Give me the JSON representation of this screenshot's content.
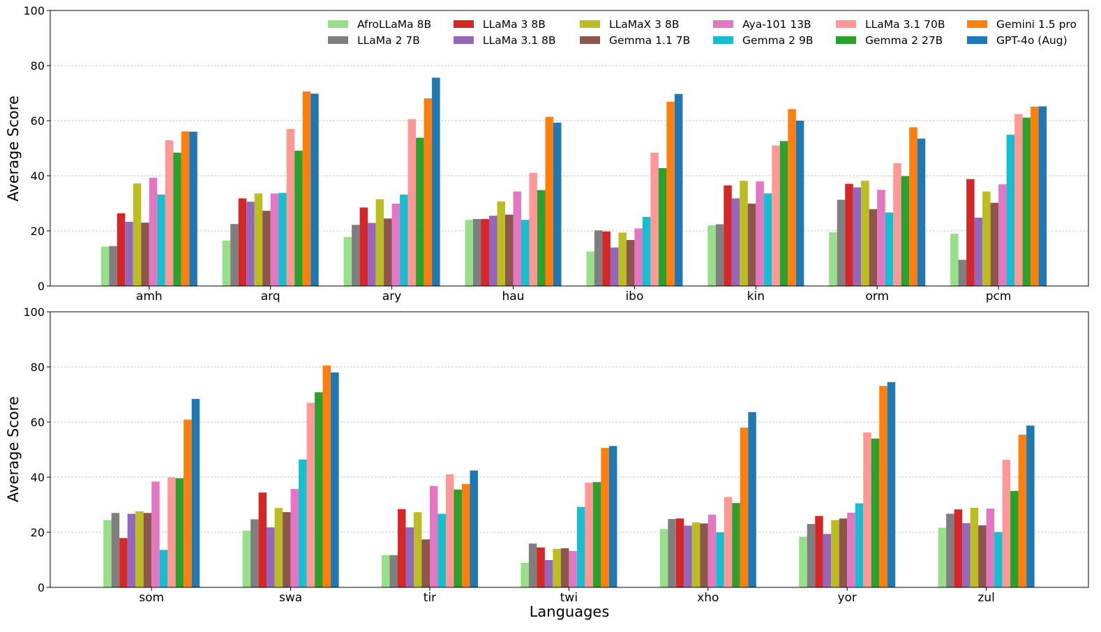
{
  "chart_data": {
    "type": "bar",
    "ylabel": "Average Score",
    "xlabel": "Languages",
    "ylim": [
      0,
      100
    ],
    "yticks": [
      "0",
      "20",
      "40",
      "60",
      "80",
      "100"
    ],
    "grid": "horizontal dashed",
    "legend": {
      "placement": "top-right",
      "entries": [
        {
          "name": "AfroLLaMa 8B",
          "color": "#98df8a"
        },
        {
          "name": "LLaMa 2 7B",
          "color": "#7f7f7f"
        },
        {
          "name": "LLaMa 3 8B",
          "color": "#d62728"
        },
        {
          "name": "LLaMa 3.1 8B",
          "color": "#9467bd"
        },
        {
          "name": "LLaMaX 3 8B",
          "color": "#bcbd22"
        },
        {
          "name": "Gemma 1.1 7B",
          "color": "#8c564b"
        },
        {
          "name": "Aya-101 13B",
          "color": "#e377c2"
        },
        {
          "name": "Gemma 2 9B",
          "color": "#17becf"
        },
        {
          "name": "LLaMa 3.1 70B",
          "color": "#ff9896"
        },
        {
          "name": "Gemma 2 27B",
          "color": "#2ca02c"
        },
        {
          "name": "Gemini 1.5 pro",
          "color": "#ff7f0e"
        },
        {
          "name": "GPT-4o (Aug)",
          "color": "#1f77b4"
        }
      ]
    },
    "panels": [
      {
        "categories": [
          "amh",
          "arq",
          "ary",
          "hau",
          "ibo",
          "kin",
          "orm",
          "pcm"
        ],
        "series": [
          {
            "name": "AfroLLaMa 8B",
            "values": [
              14.3,
              16.5,
              17.8,
              24.0,
              12.5,
              22.0,
              19.5,
              19.0
            ]
          },
          {
            "name": "LLaMa 2 7B",
            "values": [
              14.5,
              22.5,
              22.2,
              24.3,
              20.2,
              22.4,
              31.3,
              9.5
            ]
          },
          {
            "name": "LLaMa 3 8B",
            "values": [
              26.4,
              31.8,
              28.5,
              24.3,
              19.8,
              36.5,
              37.1,
              38.8
            ]
          },
          {
            "name": "LLaMa 3.1 8B",
            "values": [
              23.3,
              30.6,
              22.9,
              25.5,
              14.0,
              31.8,
              35.8,
              24.8
            ]
          },
          {
            "name": "LLaMaX 3 8B",
            "values": [
              37.2,
              33.6,
              31.5,
              30.7,
              19.4,
              38.2,
              38.2,
              34.3
            ]
          },
          {
            "name": "Gemma 1.1 7B",
            "values": [
              23.0,
              27.3,
              24.5,
              25.9,
              16.7,
              29.9,
              27.9,
              30.2
            ]
          },
          {
            "name": "Aya-101 13B",
            "values": [
              39.3,
              33.6,
              29.9,
              34.3,
              20.9,
              38.0,
              34.9,
              36.9
            ]
          },
          {
            "name": "Gemma 2 9B",
            "values": [
              33.2,
              33.8,
              33.2,
              24.0,
              25.1,
              33.6,
              26.7,
              54.9
            ]
          },
          {
            "name": "LLaMa 3.1 70B",
            "values": [
              52.9,
              57.0,
              60.6,
              41.1,
              48.4,
              51.0,
              44.6,
              62.4
            ]
          },
          {
            "name": "Gemma 2 27B",
            "values": [
              48.4,
              49.1,
              53.8,
              34.8,
              42.8,
              52.6,
              39.9,
              61.1
            ]
          },
          {
            "name": "Gemini 1.5 pro",
            "values": [
              56.1,
              70.6,
              68.1,
              61.4,
              66.9,
              64.2,
              57.6,
              65.1
            ]
          },
          {
            "name": "GPT-4o (Aug)",
            "values": [
              56.0,
              69.8,
              75.6,
              59.3,
              69.7,
              60.0,
              53.5,
              65.2
            ]
          }
        ]
      },
      {
        "categories": [
          "som",
          "swa",
          "tir",
          "twi",
          "xho",
          "yor",
          "zul"
        ],
        "series": [
          {
            "name": "AfroLLaMa 8B",
            "values": [
              24.4,
              20.6,
              11.7,
              8.9,
              21.2,
              18.4,
              21.6
            ]
          },
          {
            "name": "LLaMa 2 7B",
            "values": [
              27.0,
              24.7,
              11.7,
              15.9,
              24.8,
              23.0,
              26.7
            ]
          },
          {
            "name": "LLaMa 3 8B",
            "values": [
              17.9,
              34.4,
              28.4,
              14.5,
              25.0,
              25.9,
              28.3
            ]
          },
          {
            "name": "LLaMa 3.1 8B",
            "values": [
              26.7,
              21.8,
              21.8,
              9.9,
              22.4,
              19.4,
              23.3
            ]
          },
          {
            "name": "LLaMaX 3 8B",
            "values": [
              27.6,
              28.8,
              27.3,
              14.0,
              23.6,
              24.4,
              28.9
            ]
          },
          {
            "name": "Gemma 1.1 7B",
            "values": [
              27.0,
              27.3,
              17.4,
              14.2,
              23.2,
              25.0,
              22.5
            ]
          },
          {
            "name": "Aya-101 13B",
            "values": [
              38.4,
              35.7,
              36.8,
              13.2,
              26.4,
              27.1,
              28.6
            ]
          },
          {
            "name": "Gemma 2 9B",
            "values": [
              13.6,
              46.4,
              26.7,
              29.2,
              20.0,
              30.5,
              20.1
            ]
          },
          {
            "name": "LLaMa 3.1 70B",
            "values": [
              39.9,
              67.0,
              41.0,
              38.0,
              32.8,
              56.2,
              46.3
            ]
          },
          {
            "name": "Gemma 2 27B",
            "values": [
              39.6,
              70.8,
              35.5,
              38.2,
              30.6,
              54.0,
              35.0
            ]
          },
          {
            "name": "Gemini 1.5 pro",
            "values": [
              60.9,
              80.5,
              37.5,
              50.6,
              58.0,
              73.1,
              55.4
            ]
          },
          {
            "name": "GPT-4o (Aug)",
            "values": [
              68.4,
              78.0,
              42.4,
              51.3,
              63.6,
              74.5,
              58.7
            ]
          }
        ]
      }
    ]
  }
}
